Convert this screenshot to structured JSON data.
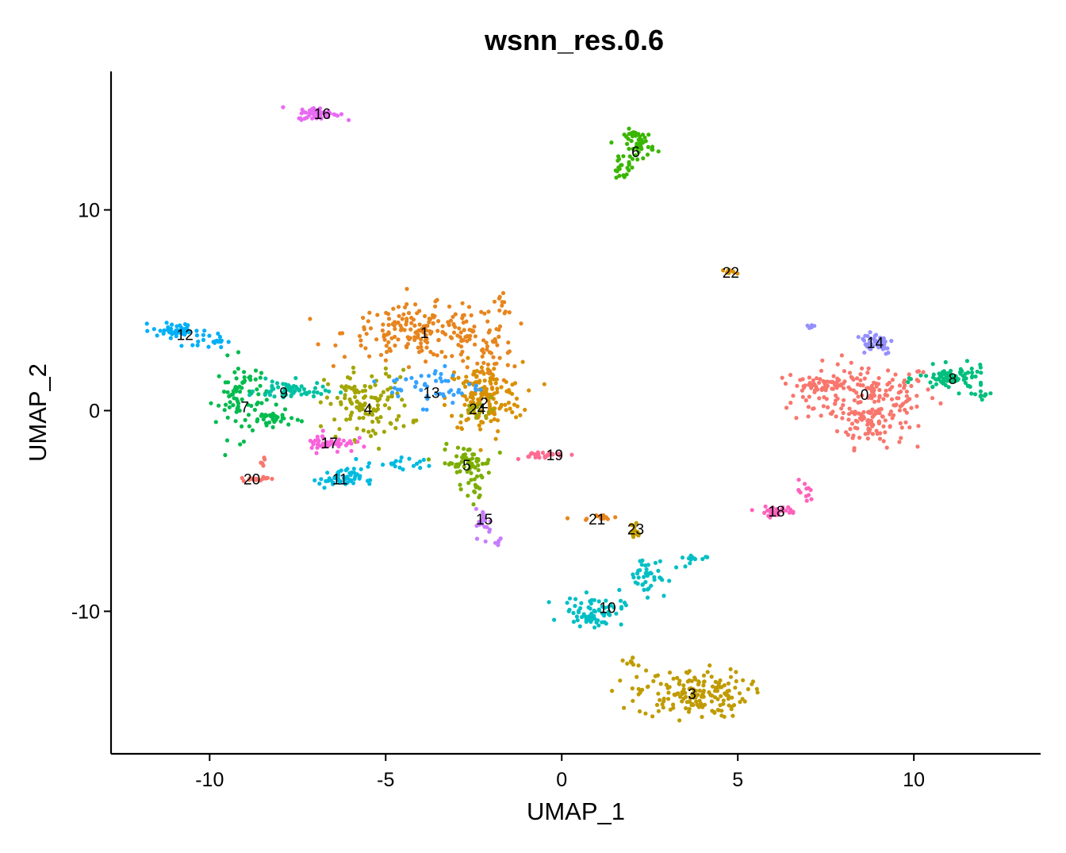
{
  "chart_data": {
    "type": "scatter",
    "title": "wsnn_res.0.6",
    "xlabel": "UMAP_1",
    "ylabel": "UMAP_2",
    "xlim": [
      -12.8,
      13.6
    ],
    "ylim": [
      -17.1,
      16.9
    ],
    "xticks": [
      -10,
      -5,
      0,
      5,
      10
    ],
    "yticks": [
      -10,
      0,
      10
    ],
    "grid": false,
    "legend": "none",
    "clusters": [
      {
        "label": "0",
        "color": "#F8766D",
        "x": 8.6,
        "y": 0.8
      },
      {
        "label": "1",
        "color": "#E7851E",
        "x": -3.9,
        "y": 3.9
      },
      {
        "label": "2",
        "color": "#D89000",
        "x": -2.2,
        "y": 0.4
      },
      {
        "label": "3",
        "color": "#C09B00",
        "x": 3.7,
        "y": -14.1
      },
      {
        "label": "4",
        "color": "#A3A500",
        "x": -5.5,
        "y": 0.1
      },
      {
        "label": "5",
        "color": "#7CAE00",
        "x": -2.7,
        "y": -2.7
      },
      {
        "label": "6",
        "color": "#39B600",
        "x": 2.1,
        "y": 12.9
      },
      {
        "label": "7",
        "color": "#00BB4E",
        "x": -9.0,
        "y": 0.2
      },
      {
        "label": "8",
        "color": "#00BF7D",
        "x": 11.1,
        "y": 1.6
      },
      {
        "label": "9",
        "color": "#00C1A3",
        "x": -7.9,
        "y": 0.9
      },
      {
        "label": "10",
        "color": "#00BFC4",
        "x": 1.3,
        "y": -9.8
      },
      {
        "label": "11",
        "color": "#00BAE0",
        "x": -6.3,
        "y": -3.4
      },
      {
        "label": "12",
        "color": "#00B0F6",
        "x": -10.7,
        "y": 3.8
      },
      {
        "label": "13",
        "color": "#35A2FF",
        "x": -3.7,
        "y": 0.9
      },
      {
        "label": "14",
        "color": "#9590FF",
        "x": 8.9,
        "y": 3.4
      },
      {
        "label": "15",
        "color": "#C77CFF",
        "x": -2.2,
        "y": -5.4
      },
      {
        "label": "16",
        "color": "#E76BF3",
        "x": -6.8,
        "y": 14.8
      },
      {
        "label": "17",
        "color": "#FA62DB",
        "x": -6.6,
        "y": -1.6
      },
      {
        "label": "18",
        "color": "#FF62BC",
        "x": 6.1,
        "y": -5.0
      },
      {
        "label": "19",
        "color": "#FF6C91",
        "x": -0.2,
        "y": -2.2
      },
      {
        "label": "20",
        "color": "#F8766D",
        "x": -8.8,
        "y": -3.4
      },
      {
        "label": "21",
        "color": "#E7851E",
        "x": 1.0,
        "y": -5.4
      },
      {
        "label": "22",
        "color": "#D89000",
        "x": 4.8,
        "y": 6.9
      },
      {
        "label": "23",
        "color": "#C09B00",
        "x": 2.1,
        "y": -5.9
      },
      {
        "label": "24",
        "color": "#A3A500",
        "x": -2.4,
        "y": 0.1
      }
    ]
  }
}
